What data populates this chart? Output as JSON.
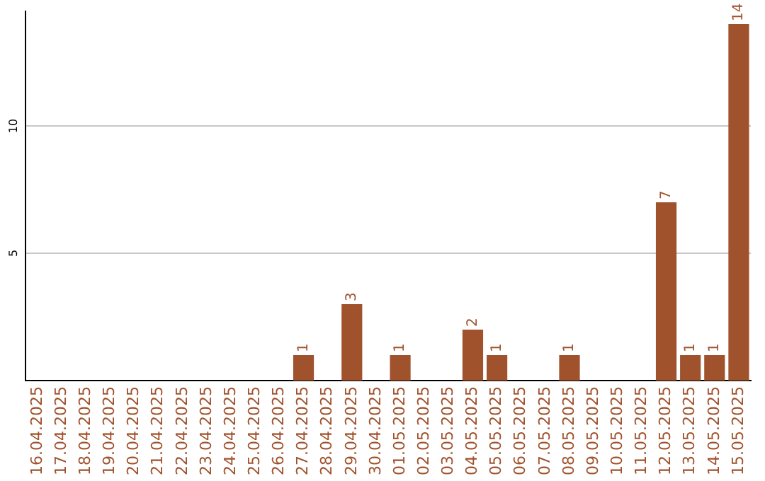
{
  "chart_data": {
    "type": "bar",
    "categories": [
      "16.04.2025",
      "17.04.2025",
      "18.04.2025",
      "19.04.2025",
      "20.04.2025",
      "21.04.2025",
      "22.04.2025",
      "23.04.2025",
      "24.04.2025",
      "25.04.2025",
      "26.04.2025",
      "27.04.2025",
      "28.04.2025",
      "29.04.2025",
      "30.04.2025",
      "01.05.2025",
      "02.05.2025",
      "03.05.2025",
      "04.05.2025",
      "05.05.2025",
      "06.05.2025",
      "07.05.2025",
      "08.05.2025",
      "09.05.2025",
      "10.05.2025",
      "11.05.2025",
      "12.05.2025",
      "13.05.2025",
      "14.05.2025",
      "15.05.2025"
    ],
    "values": [
      0,
      0,
      0,
      0,
      0,
      0,
      0,
      0,
      0,
      0,
      0,
      1,
      0,
      3,
      0,
      1,
      0,
      0,
      2,
      1,
      0,
      0,
      1,
      0,
      0,
      0,
      7,
      1,
      1,
      14
    ],
    "value_labels": [
      null,
      null,
      null,
      null,
      null,
      null,
      null,
      null,
      null,
      null,
      null,
      "1",
      null,
      "3",
      null,
      "1",
      null,
      null,
      "2",
      "1",
      null,
      null,
      "1",
      null,
      null,
      null,
      "7",
      "1",
      "1",
      "14"
    ],
    "color": "#a0522d",
    "ylim": [
      0,
      14.5
    ],
    "yticks": [
      5,
      10
    ],
    "grid": "y"
  }
}
